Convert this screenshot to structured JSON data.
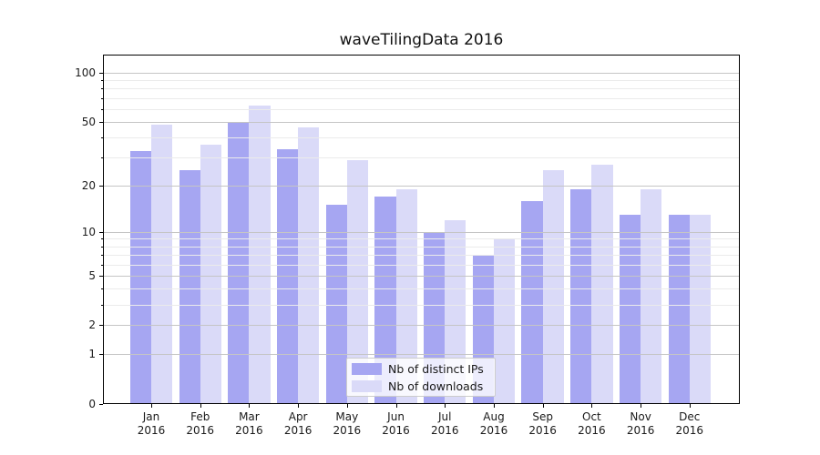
{
  "chart_data": {
    "type": "bar",
    "title": "waveTilingData 2016",
    "xlabel": "",
    "ylabel": "",
    "yscale": "log1p",
    "ylim": [
      0,
      130
    ],
    "grid": true,
    "legend_position": "lower center",
    "categories": [
      "Jan",
      "Feb",
      "Mar",
      "Apr",
      "May",
      "Jun",
      "Jul",
      "Aug",
      "Sep",
      "Oct",
      "Nov",
      "Dec"
    ],
    "x_tick_year": "2016",
    "y_major_ticks": [
      100,
      50,
      20,
      10,
      5,
      2,
      1,
      0
    ],
    "y_minor_ticks": [
      3,
      4,
      6,
      7,
      8,
      9,
      30,
      40,
      60,
      70,
      80,
      90
    ],
    "series": [
      {
        "name": "Nb of distinct IPs",
        "color": "#a6a6f2",
        "values": [
          33,
          25,
          49,
          34,
          15,
          17,
          10,
          7,
          16,
          19,
          13,
          13
        ]
      },
      {
        "name": "Nb of downloads",
        "color": "#dadaf8",
        "values": [
          48,
          36,
          63,
          46,
          29,
          19,
          12,
          9,
          25,
          27,
          19,
          13
        ]
      }
    ]
  },
  "colors": {
    "grid_major": "#c5c5c5",
    "grid_minor": "#ebebeb",
    "spine": "#000000",
    "text": "#1a1a1a",
    "legend_border": "#cccccc",
    "background": "#ffffff"
  }
}
